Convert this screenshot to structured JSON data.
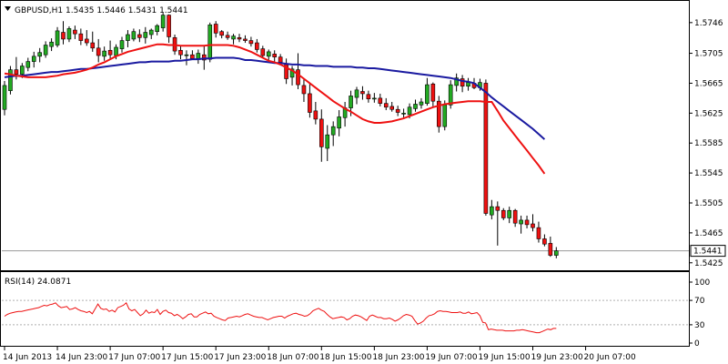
{
  "chart_data": [
    {
      "type": "candlestick",
      "title": "GBPUSD,H1  1.5435 1.5446 1.5431 1.5441",
      "symbol": "GBPUSD,H1",
      "last_ohlc": {
        "open": 1.5435,
        "high": 1.5446,
        "low": 1.5431,
        "close": 1.5441
      },
      "last_price_label": "1.5441",
      "ylim": [
        1.5415,
        1.5775
      ],
      "y_ticks": [
        "1.5746",
        "1.5705",
        "1.5665",
        "1.5625",
        "1.5585",
        "1.5545",
        "1.5505",
        "1.5465",
        "1.5425"
      ],
      "x_tick_labels": [
        "14 Jun 2013",
        "14 Jun 23:00",
        "17 Jun 07:00",
        "17 Jun 15:00",
        "17 Jun 23:00",
        "18 Jun 07:00",
        "18 Jun 15:00",
        "18 Jun 23:00",
        "19 Jun 07:00",
        "19 Jun 15:00",
        "19 Jun 23:00",
        "20 Jun 07:00"
      ],
      "x_tick_index": [
        0,
        9,
        18,
        27,
        36,
        45,
        54,
        63,
        72,
        81,
        90,
        99
      ],
      "colors": {
        "bull": "#22aa22",
        "bear": "#ee1111",
        "fast_ma": "#ee1111",
        "slow_ma": "#1a1aa0"
      },
      "candles": [
        [
          1.563,
          1.5668,
          1.5622,
          1.5662
        ],
        [
          1.5655,
          1.5688,
          1.565,
          1.5683
        ],
        [
          1.5683,
          1.57,
          1.567,
          1.5677
        ],
        [
          1.5677,
          1.5692,
          1.5672,
          1.5688
        ],
        [
          1.5686,
          1.5699,
          1.5681,
          1.5694
        ],
        [
          1.5694,
          1.5707,
          1.5686,
          1.5701
        ],
        [
          1.5701,
          1.5712,
          1.5693,
          1.5706
        ],
        [
          1.5703,
          1.5721,
          1.5699,
          1.5716
        ],
        [
          1.5714,
          1.5725,
          1.5708,
          1.572
        ],
        [
          1.5716,
          1.574,
          1.5713,
          1.5735
        ],
        [
          1.5733,
          1.5748,
          1.5717,
          1.5724
        ],
        [
          1.5724,
          1.5741,
          1.572,
          1.5738
        ],
        [
          1.5736,
          1.5742,
          1.5724,
          1.5731
        ],
        [
          1.5731,
          1.5738,
          1.5716,
          1.5722
        ],
        [
          1.5724,
          1.5736,
          1.5715,
          1.5719
        ],
        [
          1.5719,
          1.5734,
          1.5707,
          1.5712
        ],
        [
          1.5712,
          1.5724,
          1.5693,
          1.5702
        ],
        [
          1.5701,
          1.5714,
          1.5695,
          1.5708
        ],
        [
          1.5709,
          1.5722,
          1.5697,
          1.5703
        ],
        [
          1.5702,
          1.5717,
          1.5697,
          1.5713
        ],
        [
          1.5711,
          1.5727,
          1.5706,
          1.5722
        ],
        [
          1.5722,
          1.5736,
          1.5713,
          1.573
        ],
        [
          1.5724,
          1.5738,
          1.5721,
          1.5734
        ],
        [
          1.573,
          1.5737,
          1.572,
          1.5726
        ],
        [
          1.5726,
          1.574,
          1.5718,
          1.5733
        ],
        [
          1.573,
          1.5738,
          1.5724,
          1.5736
        ],
        [
          1.5734,
          1.5744,
          1.5729,
          1.5742
        ],
        [
          1.5739,
          1.5759,
          1.5734,
          1.5756
        ],
        [
          1.5756,
          1.5757,
          1.5719,
          1.5727
        ],
        [
          1.5726,
          1.573,
          1.5703,
          1.5708
        ],
        [
          1.5709,
          1.5716,
          1.5697,
          1.5703
        ],
        [
          1.5702,
          1.5709,
          1.5689,
          1.5703
        ],
        [
          1.5703,
          1.5709,
          1.5696,
          1.5698
        ],
        [
          1.5698,
          1.571,
          1.5691,
          1.5705
        ],
        [
          1.5703,
          1.5716,
          1.5683,
          1.5696
        ],
        [
          1.5697,
          1.5746,
          1.5693,
          1.5743
        ],
        [
          1.5744,
          1.5748,
          1.5726,
          1.5732
        ],
        [
          1.5734,
          1.5736,
          1.5725,
          1.5729
        ],
        [
          1.5729,
          1.5734,
          1.5723,
          1.5726
        ],
        [
          1.5724,
          1.5731,
          1.5717,
          1.5728
        ],
        [
          1.5726,
          1.5731,
          1.572,
          1.5724
        ],
        [
          1.5724,
          1.5729,
          1.5719,
          1.5722
        ],
        [
          1.5722,
          1.5727,
          1.5714,
          1.5718
        ],
        [
          1.5719,
          1.5724,
          1.5706,
          1.571
        ],
        [
          1.5711,
          1.5715,
          1.5699,
          1.5702
        ],
        [
          1.5701,
          1.571,
          1.5696,
          1.5707
        ],
        [
          1.5704,
          1.5709,
          1.5694,
          1.57
        ],
        [
          1.57,
          1.5704,
          1.5689,
          1.5693
        ],
        [
          1.569,
          1.5698,
          1.5664,
          1.5671
        ],
        [
          1.5673,
          1.5688,
          1.5662,
          1.5684
        ],
        [
          1.5683,
          1.5705,
          1.5657,
          1.5663
        ],
        [
          1.5662,
          1.5672,
          1.564,
          1.5651
        ],
        [
          1.5651,
          1.5665,
          1.5619,
          1.5626
        ],
        [
          1.5628,
          1.564,
          1.561,
          1.5617
        ],
        [
          1.5617,
          1.563,
          1.556,
          1.558
        ],
        [
          1.5578,
          1.5609,
          1.5561,
          1.5596
        ],
        [
          1.5596,
          1.5614,
          1.5581,
          1.5607
        ],
        [
          1.5605,
          1.5629,
          1.5594,
          1.562
        ],
        [
          1.5619,
          1.564,
          1.5607,
          1.5632
        ],
        [
          1.5632,
          1.5655,
          1.5621,
          1.5648
        ],
        [
          1.5646,
          1.566,
          1.5637,
          1.5656
        ],
        [
          1.5654,
          1.5661,
          1.5643,
          1.5651
        ],
        [
          1.565,
          1.5655,
          1.5639,
          1.5644
        ],
        [
          1.5644,
          1.5652,
          1.5639,
          1.5645
        ],
        [
          1.5645,
          1.5651,
          1.5634,
          1.5638
        ],
        [
          1.5638,
          1.5645,
          1.5629,
          1.5633
        ],
        [
          1.5634,
          1.564,
          1.5627,
          1.563
        ],
        [
          1.563,
          1.5635,
          1.5621,
          1.5626
        ],
        [
          1.5625,
          1.5631,
          1.5619,
          1.5625
        ],
        [
          1.5623,
          1.5638,
          1.5618,
          1.5633
        ],
        [
          1.5631,
          1.5643,
          1.5627,
          1.5637
        ],
        [
          1.5636,
          1.5645,
          1.5631,
          1.564
        ],
        [
          1.5638,
          1.5672,
          1.5635,
          1.5663
        ],
        [
          1.5664,
          1.5666,
          1.5634,
          1.5641
        ],
        [
          1.5641,
          1.5648,
          1.5599,
          1.5607
        ],
        [
          1.5607,
          1.5642,
          1.5602,
          1.5636
        ],
        [
          1.5636,
          1.5669,
          1.5631,
          1.5663
        ],
        [
          1.5662,
          1.5678,
          1.5654,
          1.5672
        ],
        [
          1.5671,
          1.5676,
          1.5653,
          1.5661
        ],
        [
          1.5661,
          1.5672,
          1.5655,
          1.5666
        ],
        [
          1.5665,
          1.5672,
          1.5657,
          1.5659
        ],
        [
          1.5659,
          1.5671,
          1.5655,
          1.5666
        ],
        [
          1.5665,
          1.567,
          1.5488,
          1.5491
        ],
        [
          1.5489,
          1.5509,
          1.5483,
          1.55
        ],
        [
          1.55,
          1.5507,
          1.5448,
          1.5495
        ],
        [
          1.5495,
          1.5498,
          1.5482,
          1.5485
        ],
        [
          1.5485,
          1.55,
          1.5478,
          1.5495
        ],
        [
          1.5495,
          1.5497,
          1.5473,
          1.5478
        ],
        [
          1.5477,
          1.5488,
          1.5464,
          1.5482
        ],
        [
          1.5482,
          1.5488,
          1.5471,
          1.5476
        ],
        [
          1.5477,
          1.549,
          1.5467,
          1.5472
        ],
        [
          1.5472,
          1.548,
          1.5452,
          1.5457
        ],
        [
          1.5457,
          1.5463,
          1.5447,
          1.545
        ],
        [
          1.5451,
          1.546,
          1.5433,
          1.5435
        ],
        [
          1.5435,
          1.5446,
          1.5431,
          1.5441
        ]
      ],
      "ma_fast": [
        1.5678,
        1.5677,
        1.5675,
        1.5674,
        1.5673,
        1.5673,
        1.5673,
        1.5673,
        1.5674,
        1.5675,
        1.5677,
        1.5678,
        1.5679,
        1.5681,
        1.5683,
        1.5686,
        1.569,
        1.5693,
        1.5697,
        1.5701,
        1.5704,
        1.5707,
        1.5709,
        1.5711,
        1.5713,
        1.5715,
        1.5717,
        1.5717,
        1.5716,
        1.5716,
        1.5715,
        1.5715,
        1.5715,
        1.5715,
        1.5715,
        1.5716,
        1.5716,
        1.5716,
        1.5716,
        1.5715,
        1.5713,
        1.571,
        1.5707,
        1.5703,
        1.5699,
        1.5695,
        1.5693,
        1.569,
        1.5686,
        1.5682,
        1.5677,
        1.5671,
        1.5665,
        1.5659,
        1.5653,
        1.5647,
        1.5641,
        1.5636,
        1.5631,
        1.5627,
        1.5622,
        1.5617,
        1.5614,
        1.5612,
        1.5612,
        1.5613,
        1.5614,
        1.5616,
        1.5618,
        1.5621,
        1.5624,
        1.5627,
        1.563,
        1.5633,
        1.5635,
        1.5637,
        1.5638,
        1.5639,
        1.564,
        1.5641,
        1.5641,
        1.5641,
        1.564,
        1.564,
        1.5628,
        1.5615,
        1.5605,
        1.5595,
        1.5585,
        1.5575,
        1.5565,
        1.5555,
        1.5544
      ],
      "ma_slow": [
        1.5673,
        1.5674,
        1.5675,
        1.5675,
        1.5676,
        1.5677,
        1.5678,
        1.5679,
        1.568,
        1.568,
        1.5681,
        1.5682,
        1.5683,
        1.5684,
        1.5684,
        1.5685,
        1.5686,
        1.5687,
        1.5688,
        1.5689,
        1.569,
        1.5691,
        1.5692,
        1.5693,
        1.5693,
        1.5694,
        1.5694,
        1.5694,
        1.5694,
        1.5695,
        1.5695,
        1.5696,
        1.5697,
        1.5697,
        1.5698,
        1.5698,
        1.5699,
        1.5699,
        1.5699,
        1.5699,
        1.5698,
        1.5696,
        1.5696,
        1.5695,
        1.5694,
        1.5693,
        1.5692,
        1.5692,
        1.5691,
        1.569,
        1.569,
        1.5689,
        1.5689,
        1.5688,
        1.5688,
        1.5688,
        1.5687,
        1.5687,
        1.5687,
        1.5687,
        1.5686,
        1.5686,
        1.5685,
        1.5685,
        1.5684,
        1.5683,
        1.5682,
        1.5681,
        1.568,
        1.5679,
        1.5678,
        1.5677,
        1.5676,
        1.5675,
        1.5674,
        1.5673,
        1.5672,
        1.567,
        1.5668,
        1.5667,
        1.5665,
        1.5659,
        1.5653,
        1.5646,
        1.564,
        1.5634,
        1.5628,
        1.5622,
        1.5616,
        1.561,
        1.5604,
        1.5597,
        1.559
      ]
    },
    {
      "type": "line",
      "title": "RSI(14) 24.0871",
      "ylim": [
        0,
        100
      ],
      "y_ticks": [
        "100",
        "70",
        "30",
        "0"
      ],
      "levels": [
        70,
        30
      ],
      "values": [
        44,
        47,
        49,
        50,
        51,
        52,
        52,
        53,
        54,
        55,
        56,
        57,
        58,
        60,
        62,
        61,
        63,
        64,
        66,
        61,
        58,
        59,
        60,
        55,
        56,
        58,
        55,
        53,
        52,
        50,
        52,
        48,
        56,
        64,
        57,
        55,
        56,
        52,
        54,
        51,
        58,
        60,
        62,
        66,
        56,
        53,
        55,
        50,
        45,
        48,
        54,
        49,
        51,
        50,
        55,
        47,
        52,
        54,
        50,
        49,
        45,
        47,
        44,
        40,
        43,
        47,
        48,
        43,
        43,
        47,
        49,
        51,
        48,
        49,
        44,
        42,
        40,
        38,
        37,
        41,
        42,
        43,
        44,
        43,
        45,
        47,
        48,
        46,
        44,
        43,
        42,
        42,
        40,
        38,
        40,
        42,
        43,
        44,
        44,
        41,
        44,
        46,
        48,
        49,
        47,
        46,
        44,
        45,
        48,
        53,
        55,
        57,
        54,
        52,
        47,
        43,
        40,
        41,
        42,
        43,
        42,
        38,
        40,
        44,
        46,
        45,
        43,
        40,
        37,
        44,
        46,
        44,
        42,
        42,
        40,
        40,
        41,
        39,
        36,
        38,
        41,
        45,
        47,
        46,
        44,
        37,
        31,
        33,
        36,
        41,
        45,
        46,
        48,
        52,
        53,
        52,
        52,
        51,
        50,
        50,
        50,
        51,
        49,
        49,
        51,
        48,
        49,
        50,
        45,
        34,
        33,
        22,
        23,
        22,
        21,
        21,
        21,
        20,
        20,
        20,
        20,
        21,
        21,
        22,
        21,
        20,
        19,
        18,
        17,
        17,
        19,
        21,
        23,
        22,
        24,
        24
      ]
    }
  ]
}
